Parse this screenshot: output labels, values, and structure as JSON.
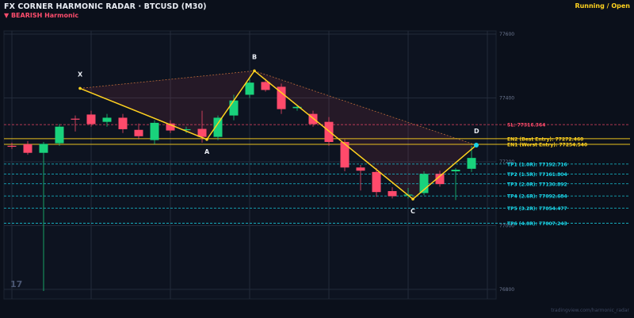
{
  "header": {
    "title": "FX CORNER HARMONIC RADAR  ·  BTCUSD (M30)",
    "bias": "▼ BEARISH  Harmonic",
    "status": "Running / Open"
  },
  "watermark": "17",
  "source": "tradingview.com/harmonic_radar",
  "colors": {
    "background": "#0b101b",
    "bull": "#19d27c",
    "bear": "#ff4a6b",
    "pattern": "#ffd21f",
    "sl": "#ff4a6b",
    "entry": "#ffd21f",
    "tp": "#19d3e6",
    "grid": "#232b3a"
  },
  "chart_data": {
    "type": "candlestick",
    "ylim": [
      76770,
      77610
    ],
    "y_ticks": [
      {
        "value": 77600,
        "label": "77600"
      },
      {
        "value": 77400,
        "label": "77400"
      },
      {
        "value": 77200,
        "label": "77200"
      },
      {
        "value": 77000,
        "label": "77000"
      },
      {
        "value": 76800,
        "label": "76800"
      }
    ],
    "candles": [
      {
        "i": 0,
        "o": 77250,
        "h": 77260,
        "l": 77240,
        "c": 77248
      },
      {
        "i": 1,
        "o": 77255,
        "h": 77265,
        "l": 77222,
        "c": 77228
      },
      {
        "i": 2,
        "o": 77228,
        "h": 77262,
        "l": 76795,
        "c": 77256
      },
      {
        "i": 3,
        "o": 77258,
        "h": 77318,
        "l": 77250,
        "c": 77310
      },
      {
        "i": 4,
        "o": 77335,
        "h": 77345,
        "l": 77295,
        "c": 77333
      },
      {
        "i": 5,
        "o": 77348,
        "h": 77360,
        "l": 77310,
        "c": 77318
      },
      {
        "i": 6,
        "o": 77325,
        "h": 77350,
        "l": 77310,
        "c": 77338
      },
      {
        "i": 7,
        "o": 77338,
        "h": 77350,
        "l": 77290,
        "c": 77302
      },
      {
        "i": 8,
        "o": 77300,
        "h": 77320,
        "l": 77270,
        "c": 77280
      },
      {
        "i": 9,
        "o": 77268,
        "h": 77330,
        "l": 77255,
        "c": 77322
      },
      {
        "i": 10,
        "o": 77320,
        "h": 77330,
        "l": 77290,
        "c": 77298
      },
      {
        "i": 11,
        "o": 77300,
        "h": 77310,
        "l": 77290,
        "c": 77302
      },
      {
        "i": 12,
        "o": 77303,
        "h": 77360,
        "l": 77260,
        "c": 77278
      },
      {
        "i": 13,
        "o": 77278,
        "h": 77345,
        "l": 77268,
        "c": 77338
      },
      {
        "i": 14,
        "o": 77345,
        "h": 77410,
        "l": 77330,
        "c": 77392
      },
      {
        "i": 15,
        "o": 77410,
        "h": 77460,
        "l": 77400,
        "c": 77448
      },
      {
        "i": 16,
        "o": 77450,
        "h": 77460,
        "l": 77420,
        "c": 77425
      },
      {
        "i": 17,
        "o": 77435,
        "h": 77445,
        "l": 77350,
        "c": 77365
      },
      {
        "i": 18,
        "o": 77368,
        "h": 77378,
        "l": 77360,
        "c": 77372
      },
      {
        "i": 19,
        "o": 77350,
        "h": 77360,
        "l": 77310,
        "c": 77318
      },
      {
        "i": 20,
        "o": 77325,
        "h": 77340,
        "l": 77250,
        "c": 77262
      },
      {
        "i": 21,
        "o": 77262,
        "h": 77270,
        "l": 77170,
        "c": 77182
      },
      {
        "i": 22,
        "o": 77182,
        "h": 77190,
        "l": 77110,
        "c": 77172
      },
      {
        "i": 23,
        "o": 77168,
        "h": 77180,
        "l": 77090,
        "c": 77105
      },
      {
        "i": 24,
        "o": 77108,
        "h": 77120,
        "l": 77085,
        "c": 77092
      },
      {
        "i": 25,
        "o": 77095,
        "h": 77118,
        "l": 77085,
        "c": 77097
      },
      {
        "i": 26,
        "o": 77102,
        "h": 77170,
        "l": 77095,
        "c": 77162
      },
      {
        "i": 27,
        "o": 77162,
        "h": 77172,
        "l": 77122,
        "c": 77130
      },
      {
        "i": 28,
        "o": 77170,
        "h": 77180,
        "l": 77080,
        "c": 77175
      },
      {
        "i": 29,
        "o": 77178,
        "h": 77250,
        "l": 77168,
        "c": 77212
      }
    ],
    "pattern": {
      "points": [
        {
          "label": "X",
          "i": 4.3,
          "price": 77430
        },
        {
          "label": "A",
          "i": 12.3,
          "price": 77270
        },
        {
          "label": "B",
          "i": 15.3,
          "price": 77485
        },
        {
          "label": "C",
          "i": 25.3,
          "price": 77083
        },
        {
          "label": "D",
          "i": 29.3,
          "price": 77252
        }
      ]
    },
    "levels": [
      {
        "kind": "sl",
        "price": 77316.364,
        "label": "SL: 77316.364"
      },
      {
        "kind": "entry",
        "price": 77272.46,
        "label": "EN2 (Best Entry): 77272.460"
      },
      {
        "kind": "entry",
        "price": 77254.54,
        "label": "EN1 (Worst Entry): 77254.540"
      },
      {
        "kind": "tp",
        "price": 77192.716,
        "label": "TP1 (1.0R): 77192.716"
      },
      {
        "kind": "tp",
        "price": 77161.804,
        "label": "TP2 (1.5R): 77161.804"
      },
      {
        "kind": "tp",
        "price": 77130.892,
        "label": "TP3 (2.0R): 77130.892"
      },
      {
        "kind": "tp",
        "price": 77092.684,
        "label": "TP4 (2.6R): 77092.684"
      },
      {
        "kind": "tp",
        "price": 77054.477,
        "label": "TP5 (3.2R): 77054.477"
      },
      {
        "kind": "tp",
        "price": 77007.243,
        "label": "TP6 (4.0R): 77007.243"
      }
    ]
  }
}
